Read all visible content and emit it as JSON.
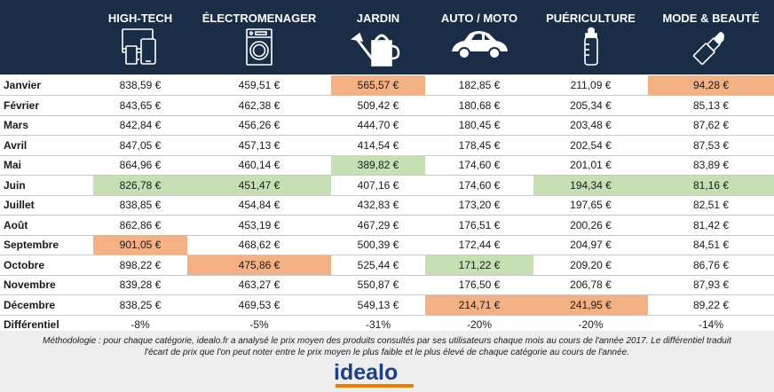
{
  "columns": [
    {
      "label": "HIGH-TECH",
      "icon": "devices-icon"
    },
    {
      "label": "ÉLECTROMENAGER",
      "icon": "washing-machine-icon"
    },
    {
      "label": "JARDIN",
      "icon": "watering-can-icon"
    },
    {
      "label": "AUTO / MOTO",
      "icon": "car-icon"
    },
    {
      "label": "PUÉRICULTURE",
      "icon": "baby-bottle-icon"
    },
    {
      "label": "MODE & BEAUTÉ",
      "icon": "lipstick-icon"
    }
  ],
  "colors": {
    "header_bg": "#1a2d47",
    "highest": "#f4b183",
    "lowest": "#c6e0b4",
    "logo_blue": "#1b3f8b",
    "logo_orange": "#f07c00",
    "footer_bg": "#eeeeee"
  },
  "rows": [
    {
      "month": "Janvier",
      "values": [
        "838,59 €",
        "459,51 €",
        "565,57 €",
        "182,85 €",
        "211,09 €",
        "94,28 €"
      ],
      "marks": [
        "",
        "",
        "hi",
        "",
        "",
        "hi"
      ]
    },
    {
      "month": "Février",
      "values": [
        "843,65 €",
        "462,38 €",
        "509,42 €",
        "180,68 €",
        "205,34 €",
        "85,13 €"
      ],
      "marks": [
        "",
        "",
        "",
        "",
        "",
        ""
      ]
    },
    {
      "month": "Mars",
      "values": [
        "842,84 €",
        "456,26 €",
        "444,70 €",
        "180,45 €",
        "203,48 €",
        "87,62 €"
      ],
      "marks": [
        "",
        "",
        "",
        "",
        "",
        ""
      ]
    },
    {
      "month": "Avril",
      "values": [
        "847,05 €",
        "457,13 €",
        "414,54 €",
        "178,45 €",
        "202,54 €",
        "87,53 €"
      ],
      "marks": [
        "",
        "",
        "",
        "",
        "",
        ""
      ]
    },
    {
      "month": "Mai",
      "values": [
        "864,96 €",
        "460,14 €",
        "389,82 €",
        "174,60 €",
        "201,01 €",
        "83,89 €"
      ],
      "marks": [
        "",
        "",
        "lo",
        "",
        "",
        ""
      ]
    },
    {
      "month": "Juin",
      "values": [
        "826,78 €",
        "451,47 €",
        "407,16 €",
        "174,60 €",
        "194,34 €",
        "81,16 €"
      ],
      "marks": [
        "lo",
        "lo",
        "",
        "",
        "lo",
        "lo"
      ]
    },
    {
      "month": "Juillet",
      "values": [
        "838,85 €",
        "454,84 €",
        "432,83 €",
        "173,20 €",
        "197,65 €",
        "82,51 €"
      ],
      "marks": [
        "",
        "",
        "",
        "",
        "",
        ""
      ]
    },
    {
      "month": "Août",
      "values": [
        "862,86 €",
        "453,19 €",
        "467,29 €",
        "176,51 €",
        "200,26 €",
        "81,42 €"
      ],
      "marks": [
        "",
        "",
        "",
        "",
        "",
        ""
      ]
    },
    {
      "month": "Septembre",
      "values": [
        "901,05 €",
        "468,62 €",
        "500,39 €",
        "172,44 €",
        "204,97 €",
        "84,51 €"
      ],
      "marks": [
        "hi",
        "",
        "",
        "",
        "",
        ""
      ]
    },
    {
      "month": "Octobre",
      "values": [
        "898,22 €",
        "475,86 €",
        "525,44 €",
        "171,22 €",
        "209,20 €",
        "86,76 €"
      ],
      "marks": [
        "",
        "hi",
        "",
        "lo",
        "",
        ""
      ]
    },
    {
      "month": "Novembre",
      "values": [
        "839,28 €",
        "463,27 €",
        "550,87 €",
        "176,50 €",
        "206,78 €",
        "87,93 €"
      ],
      "marks": [
        "",
        "",
        "",
        "",
        "",
        ""
      ]
    },
    {
      "month": "Décembre",
      "values": [
        "838,25 €",
        "469,53 €",
        "549,13 €",
        "214,71 €",
        "241,95 €",
        "89,22 €"
      ],
      "marks": [
        "",
        "",
        "",
        "hi",
        "hi",
        ""
      ]
    }
  ],
  "differential": {
    "label": "Différentiel",
    "values": [
      "-8%",
      "-5%",
      "-31%",
      "-20%",
      "-20%",
      "-14%"
    ]
  },
  "methodology_line1": "Méthodologie :  pour chaque catégorie, idealo.fr a analysé le prix moyen des produits consultés par ses utilisateurs chaque mois au cours de l'année 2017. Le différentiel traduit",
  "methodology_line2": "l'écart de prix que l'on peut noter entre le prix moyen le plus faible et le plus élevé de chaque catégorie au cours de l'année.",
  "logo": "idealo"
}
